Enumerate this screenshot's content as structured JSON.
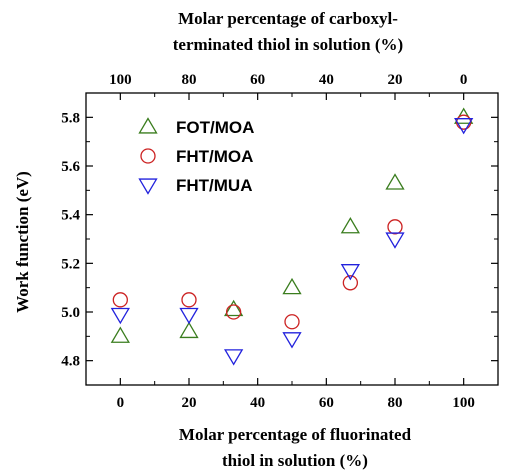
{
  "chart_data": {
    "type": "scatter",
    "title": "",
    "xlabel_lines": [
      "Molar percentage of fluorinated",
      "thiol in solution (%)"
    ],
    "x2label_lines": [
      "Molar percentage of carboxyl-",
      "terminated thiol in solution (%)"
    ],
    "ylabel": "Work function (eV)",
    "xlim": [
      -10,
      110
    ],
    "ylim": [
      4.7,
      5.9
    ],
    "xticks": [
      0,
      20,
      40,
      60,
      80,
      100
    ],
    "x2ticks": [
      100,
      80,
      60,
      40,
      20,
      0
    ],
    "yticks": [
      4.8,
      5.0,
      5.2,
      5.4,
      5.6,
      5.8
    ],
    "ytick_labels": [
      "4.8",
      "5.0",
      "5.2",
      "5.4",
      "5.6",
      "5.8"
    ],
    "legend_position": "top-left",
    "grid": false,
    "series": [
      {
        "name": "FOT/MOA",
        "marker": "triangle-up",
        "color": "#3a7d1e",
        "x": [
          0,
          20,
          33,
          50,
          67,
          80,
          100
        ],
        "y": [
          4.9,
          4.92,
          5.01,
          5.1,
          5.35,
          5.53,
          5.8
        ]
      },
      {
        "name": "FHT/MOA",
        "marker": "circle",
        "color": "#cc2222",
        "x": [
          0,
          20,
          33,
          50,
          67,
          80,
          100
        ],
        "y": [
          5.05,
          5.05,
          5.0,
          4.96,
          5.12,
          5.35,
          5.78
        ]
      },
      {
        "name": "FHT/MUA",
        "marker": "triangle-down",
        "color": "#2222dd",
        "x": [
          0,
          20,
          33,
          50,
          67,
          80,
          100
        ],
        "y": [
          4.99,
          4.99,
          4.82,
          4.89,
          5.17,
          5.3,
          5.77
        ]
      }
    ]
  }
}
